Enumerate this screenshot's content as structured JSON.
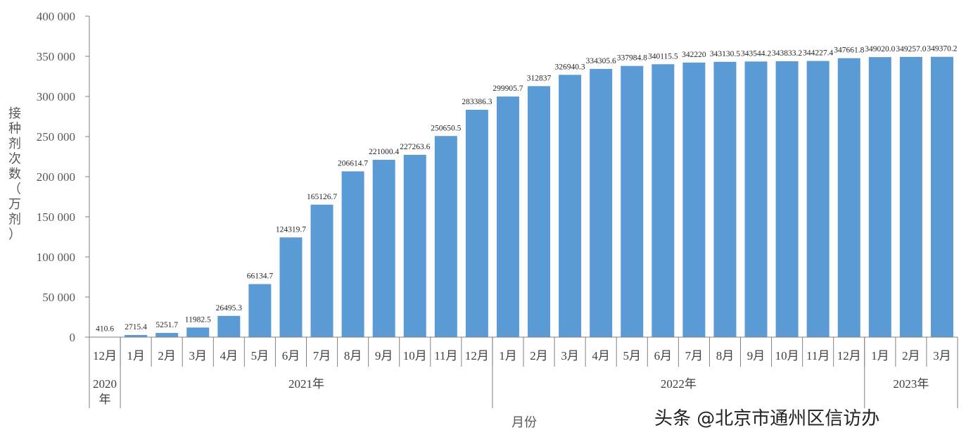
{
  "chart_data": {
    "type": "bar",
    "title": "",
    "xlabel": "月份",
    "ylabel": "接种剂次数（万剂）",
    "ylim": [
      0,
      400000
    ],
    "yticks": [
      "0",
      "50 000",
      "100 000",
      "150 000",
      "200 000",
      "250 000",
      "300 000",
      "350 000",
      "400 000"
    ],
    "grid": false,
    "categories": [
      "12月",
      "1月",
      "2月",
      "3月",
      "4月",
      "5月",
      "6月",
      "7月",
      "8月",
      "9月",
      "10月",
      "11月",
      "12月",
      "1月",
      "2月",
      "3月",
      "4月",
      "5月",
      "6月",
      "7月",
      "8月",
      "9月",
      "10月",
      "11月",
      "12月",
      "1月",
      "2月",
      "3月"
    ],
    "year_groups": [
      {
        "label": "2020\n年",
        "count": 1
      },
      {
        "label": "2021年",
        "count": 12
      },
      {
        "label": "2022年",
        "count": 12
      },
      {
        "label": "2023年",
        "count": 3
      }
    ],
    "values": [
      410.6,
      2715.4,
      5251.7,
      11982.5,
      26495.3,
      66134.7,
      124319.7,
      165126.7,
      206614.7,
      221000.4,
      227263.6,
      250650.5,
      283386.3,
      299905.7,
      312837,
      326940.3,
      334305.6,
      337984.8,
      340115.5,
      342220,
      343130.5,
      343544.2,
      343833.2,
      344227.4,
      347661.8,
      349020.0,
      349257.0,
      349370.2
    ],
    "data_labels": [
      "410.6",
      "2715.4",
      "5251.7",
      "11982.5",
      "26495.3",
      "66134.7",
      "124319.7",
      "165126.7",
      "206614.7",
      "221000.4",
      "227263.6",
      "250650.5",
      "283386.3",
      "299905.7",
      "312837",
      "326940.3",
      "334305.6",
      "337984.8",
      "340115.5",
      "342220",
      "343130.5",
      "343544.2",
      "343833.2",
      "344227.4",
      "347661.8",
      "349020.0",
      "349257.0",
      "349370.2"
    ],
    "bar_color": "#5b9bd5"
  },
  "watermark": "头条 @北京市通州区信访办"
}
